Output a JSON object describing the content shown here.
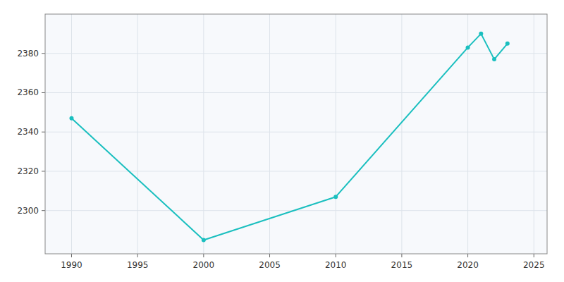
{
  "chart_data": {
    "type": "line",
    "x": [
      1990,
      2000,
      2010,
      2020,
      2021,
      2022,
      2023
    ],
    "values": [
      2347,
      2285,
      2307,
      2383,
      2390,
      2377,
      2385
    ],
    "color": "#1ABFBF",
    "marker": "circle",
    "xlim": [
      1988,
      2026
    ],
    "ylim": [
      2278,
      2400
    ],
    "xticks": [
      1990,
      1995,
      2000,
      2005,
      2010,
      2015,
      2020,
      2025
    ],
    "yticks": [
      2300,
      2320,
      2340,
      2360,
      2380
    ],
    "grid": true
  }
}
